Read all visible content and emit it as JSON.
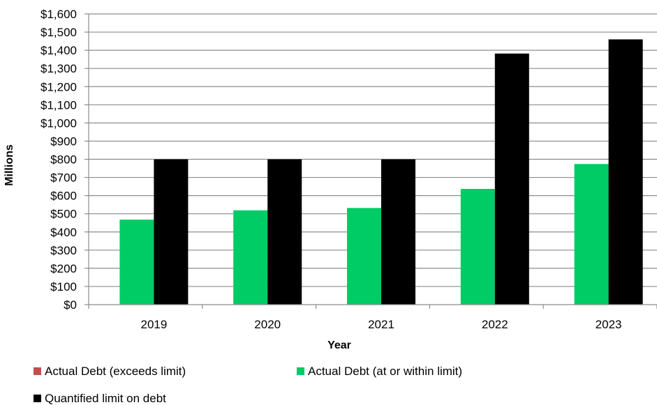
{
  "chart_data": {
    "type": "bar",
    "title": "",
    "xlabel": "Year",
    "ylabel": "Millions",
    "ylim": [
      0,
      1600
    ],
    "ytick_step": 100,
    "ytick_prefix": "$",
    "grid": true,
    "legend_position": "bottom",
    "categories": [
      "2019",
      "2020",
      "2021",
      "2022",
      "2023"
    ],
    "series": [
      {
        "name": "Actual Debt (exceeds limit)",
        "color": "#c0504d",
        "values": [
          0,
          0,
          0,
          0,
          0
        ]
      },
      {
        "name": "Actual Debt (at or within limit)",
        "color": "#00cc66",
        "values": [
          468,
          519,
          532,
          637,
          774
        ]
      },
      {
        "name": "Quantified limit on debt",
        "color": "#000000",
        "values": [
          800,
          800,
          800,
          1382,
          1460
        ]
      }
    ]
  }
}
